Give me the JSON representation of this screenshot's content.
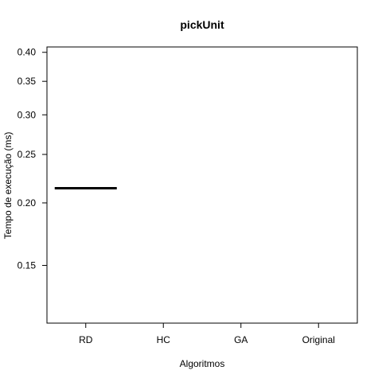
{
  "chart_data": {
    "type": "boxplot",
    "title": "pickUnit",
    "xlabel": "Algoritmos",
    "ylabel": "Tempo de execução (ms)",
    "categories": [
      "RD",
      "HC",
      "GA",
      "Original"
    ],
    "y_scale": "log",
    "ylim": [
      0.115,
      0.41
    ],
    "yticks": [
      0.15,
      0.2,
      0.25,
      0.3,
      0.35,
      0.4
    ],
    "ytick_labels": [
      "0.15",
      "0.20",
      "0.25",
      "0.30",
      "0.35",
      "0.40"
    ],
    "values": [
      0.214,
      null,
      null,
      null
    ],
    "grid": false,
    "legend": "none"
  }
}
